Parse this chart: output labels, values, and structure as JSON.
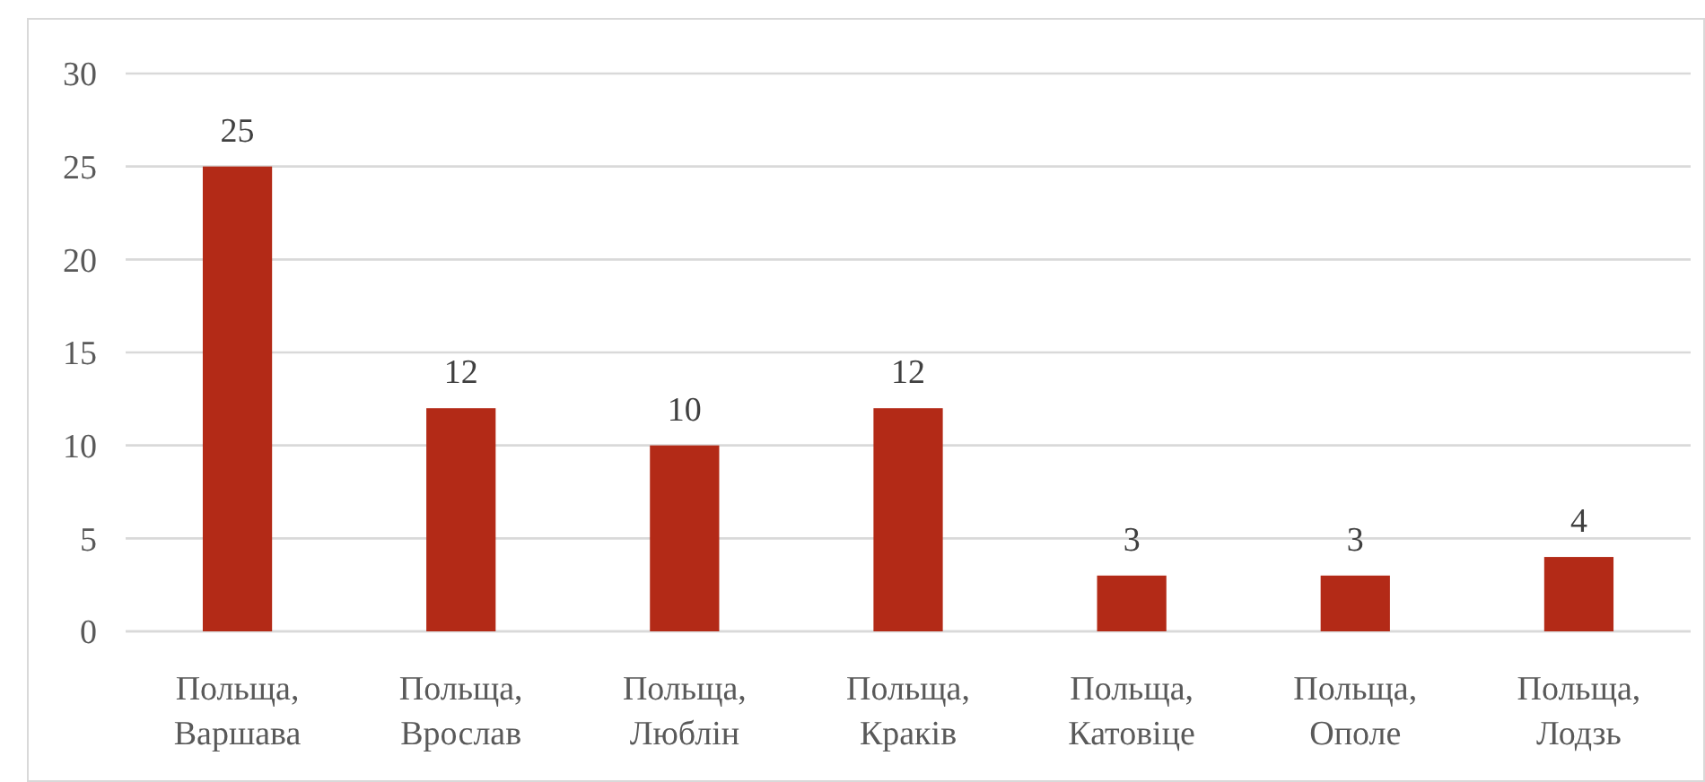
{
  "chart_data": {
    "type": "bar",
    "categories": [
      "Польща, Варшава",
      "Польща, Врослав",
      "Польща, Люблін",
      "Польща, Краків",
      "Польща, Катовіце",
      "Польща, Ополе",
      "Польща, Лодзь"
    ],
    "values": [
      25,
      12,
      10,
      12,
      3,
      3,
      4
    ],
    "color": "#b32a17",
    "ylim": [
      0,
      30
    ],
    "yticks": [
      0,
      5,
      10,
      15,
      20,
      25,
      30
    ],
    "grid": "y",
    "data_labels": true
  }
}
